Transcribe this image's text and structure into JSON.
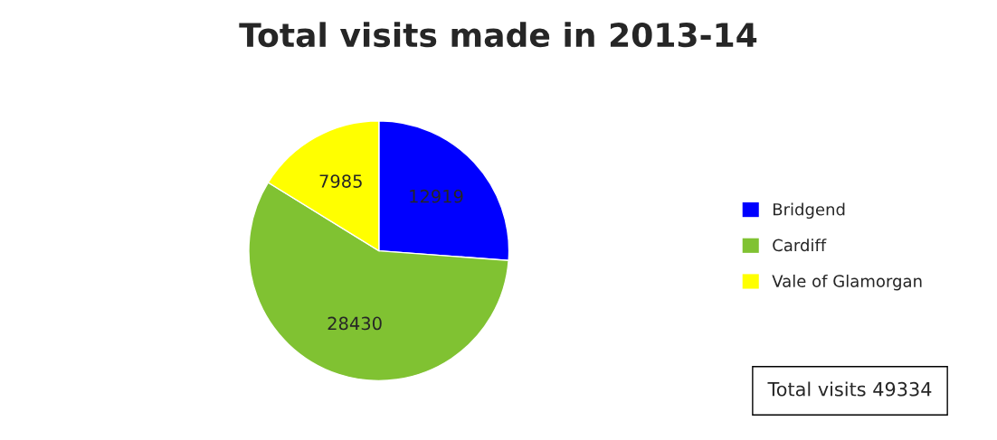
{
  "chart_data": {
    "type": "pie",
    "title": "Total visits made in 2013-14",
    "categories": [
      "Bridgend",
      "Cardiff",
      "Vale of Glamorgan"
    ],
    "values": [
      12919,
      28430,
      7985
    ],
    "colors": [
      "#0000ff",
      "#80c232",
      "#ffff00"
    ],
    "data_labels": true,
    "legend": "right",
    "annotations": [
      "Total visits 49334"
    ]
  }
}
